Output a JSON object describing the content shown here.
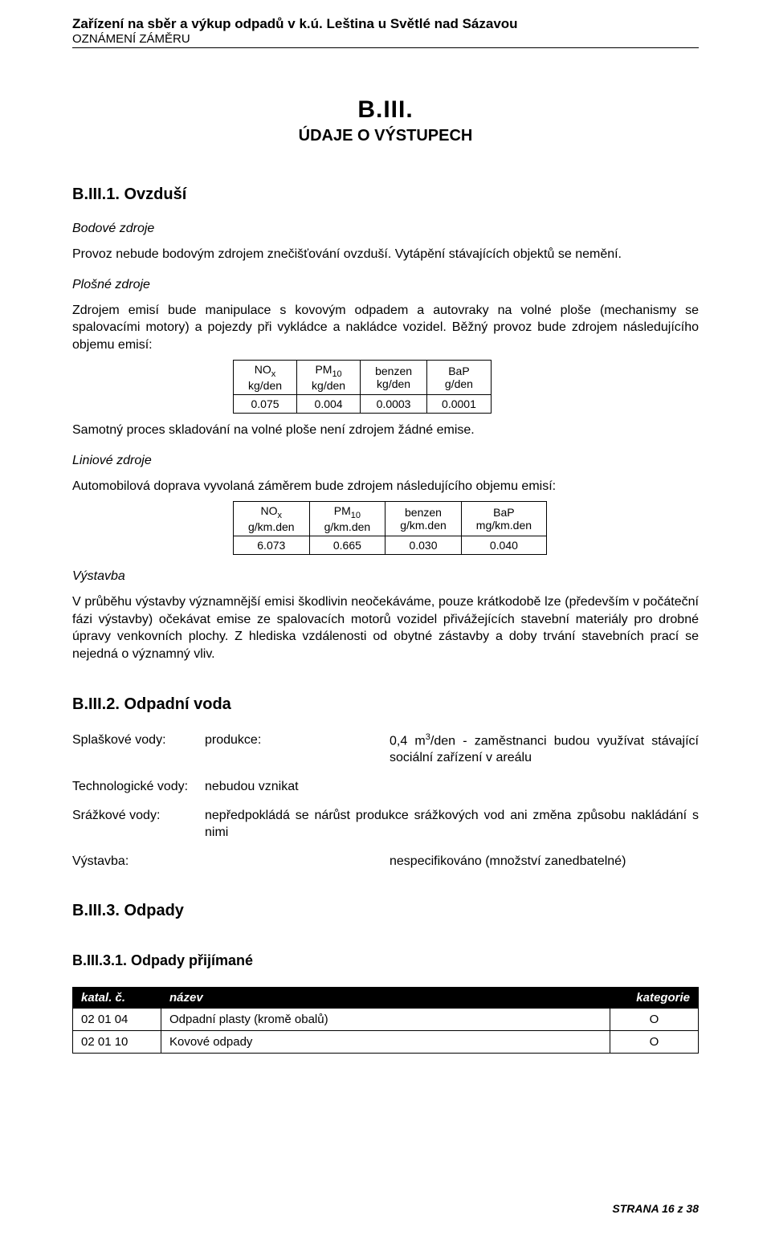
{
  "header": {
    "line1": "Zařízení na sběr a výkup odpadů v k.ú. Leština u Světlé nad Sázavou",
    "line2": "OZNÁMENÍ ZÁMĚRU"
  },
  "title": {
    "main": "B.III.",
    "sub": "ÚDAJE O VÝSTUPECH"
  },
  "s1": {
    "heading": "B.III.1. Ovzduší",
    "bodove_h": "Bodové zdroje",
    "bodove_p": "Provoz nebude bodovým zdrojem znečišťování ovzduší. Vytápění stávajících objektů se nemění.",
    "plosne_h": "Plošné zdroje",
    "plosne_p1": "Zdrojem emisí bude manipulace s kovovým odpadem a autovraky na volné ploše (mechanismy se spalovacími motory) a pojezdy při vykládce a nakládce vozidel. Běžný provoz bude zdrojem následujícího objemu emisí:",
    "table1": {
      "headers": [
        {
          "label": "NO",
          "sub": "x",
          "unit": "kg/den"
        },
        {
          "label": "PM",
          "sub": "10",
          "unit": "kg/den"
        },
        {
          "label": "benzen",
          "sub": "",
          "unit": "kg/den"
        },
        {
          "label": "BaP",
          "sub": "",
          "unit": "g/den"
        }
      ],
      "values": [
        "0.075",
        "0.004",
        "0.0003",
        "0.0001"
      ]
    },
    "plosne_p2": "Samotný proces skladování na volné ploše není zdrojem žádné emise.",
    "liniove_h": "Liniové zdroje",
    "liniove_p": "Automobilová doprava vyvolaná záměrem bude zdrojem následujícího objemu emisí:",
    "table2": {
      "headers": [
        {
          "label": "NO",
          "sub": "x",
          "unit": "g/km.den"
        },
        {
          "label": "PM",
          "sub": "10",
          "unit": "g/km.den"
        },
        {
          "label": "benzen",
          "sub": "",
          "unit": "g/km.den"
        },
        {
          "label": "BaP",
          "sub": "",
          "unit": "mg/km.den"
        }
      ],
      "values": [
        "6.073",
        "0.665",
        "0.030",
        "0.040"
      ]
    },
    "vystavba_h": "Výstavba",
    "vystavba_p": "V průběhu výstavby významnější emisi škodlivin neočekáváme, pouze krátkodobě lze (především v počáteční fázi výstavby) očekávat emise ze spalovacích motorů vozidel přivážejících stavební materiály pro drobné úpravy venkovních plochy. Z hlediska vzdálenosti od obytné zástavby a doby trvání stavebních prací se nejedná o významný vliv."
  },
  "s2": {
    "heading": "B.III.2. Odpadní voda",
    "rows": {
      "splaskove": {
        "label": "Splaškové vody:",
        "prod": "produkce:",
        "desc_a": "0,4 m",
        "desc_b": "/den - zaměstnanci budou využívat stávající sociální zařízení v areálu"
      },
      "tech": {
        "label": "Technologické vody:",
        "desc": "nebudou vznikat"
      },
      "sraz": {
        "label": "Srážkové vody:",
        "desc": "nepředpokládá se nárůst produkce srážkových vod ani změna způsobu nakládání s nimi"
      },
      "vystavba": {
        "label": "Výstavba:",
        "desc": "nespecifikováno (množství zanedbatelné)"
      }
    }
  },
  "s3": {
    "heading": "B.III.3. Odpady",
    "sub_heading": "B.III.3.1. Odpady přijímané",
    "table": {
      "cols": [
        "katal. č.",
        "název",
        "kategorie"
      ],
      "rows": [
        [
          "02 01 04",
          "Odpadní plasty (kromě obalů)",
          "O"
        ],
        [
          "02 01 10",
          "Kovové odpady",
          "O"
        ]
      ]
    }
  },
  "footer": "STRANA 16 z 38"
}
